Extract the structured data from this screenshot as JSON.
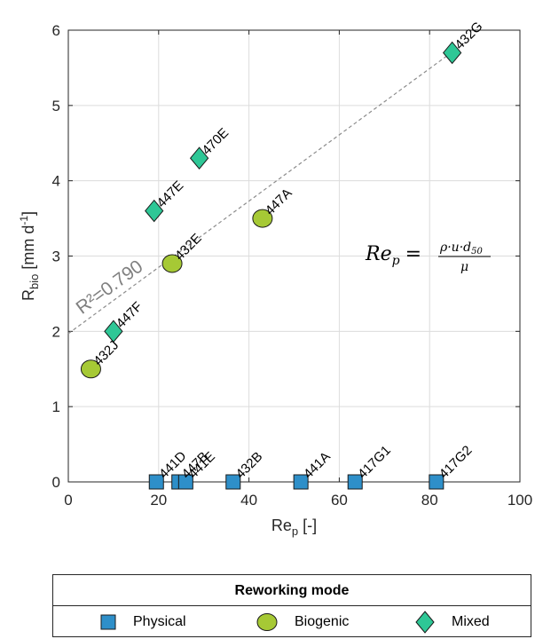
{
  "chart_data": {
    "type": "scatter",
    "xlabel": "Re",
    "xlabel_sub": "p",
    "xlabel_unit": " [-]",
    "ylabel": "R",
    "ylabel_sub": "bio",
    "ylabel_unit_pre": " [mm d",
    "ylabel_unit_sup": "-1",
    "ylabel_unit_post": "]",
    "xlim": [
      0,
      100
    ],
    "ylim": [
      0,
      6
    ],
    "xticks": [
      0,
      20,
      40,
      60,
      80,
      100
    ],
    "yticks": [
      0,
      1,
      2,
      3,
      4,
      5,
      6
    ],
    "grid": true,
    "fit": {
      "slope": 0.044,
      "intercept": 1.97,
      "r2_text": "R²=0.790",
      "style": "dashed"
    },
    "formula": {
      "lhs": "Re",
      "lhs_sub": "p",
      "eq": "=",
      "numerator": "ρ·u·d",
      "numerator_sub": "50",
      "denominator": "μ"
    },
    "series": [
      {
        "name": "Physical",
        "marker": "square",
        "color": "#2e8fc9",
        "points": [
          {
            "x": 19.5,
            "y": 0,
            "label": "441D"
          },
          {
            "x": 24.5,
            "y": 0,
            "label": "447B"
          },
          {
            "x": 26.0,
            "y": 0,
            "label": "441E"
          },
          {
            "x": 36.5,
            "y": 0,
            "label": "432B"
          },
          {
            "x": 51.5,
            "y": 0,
            "label": "441A"
          },
          {
            "x": 63.5,
            "y": 0,
            "label": "417G1"
          },
          {
            "x": 81.5,
            "y": 0,
            "label": "417G2"
          }
        ]
      },
      {
        "name": "Biogenic",
        "marker": "circle",
        "color": "#a6c935",
        "points": [
          {
            "x": 5.0,
            "y": 1.5,
            "label": "432J"
          },
          {
            "x": 23.0,
            "y": 2.9,
            "label": "432E"
          },
          {
            "x": 43.0,
            "y": 3.5,
            "label": "447A"
          }
        ]
      },
      {
        "name": "Mixed",
        "marker": "diamond",
        "color": "#2ec796",
        "points": [
          {
            "x": 10.0,
            "y": 2.0,
            "label": "447F"
          },
          {
            "x": 19.0,
            "y": 3.6,
            "label": "447E"
          },
          {
            "x": 29.0,
            "y": 4.3,
            "label": "470E"
          },
          {
            "x": 85.0,
            "y": 5.7,
            "label": "432G"
          }
        ]
      }
    ]
  },
  "legend": {
    "title": "Reworking mode",
    "items": [
      {
        "label": "Physical",
        "marker": "square"
      },
      {
        "label": "Biogenic",
        "marker": "circle"
      },
      {
        "label": "Mixed",
        "marker": "diamond"
      }
    ]
  }
}
